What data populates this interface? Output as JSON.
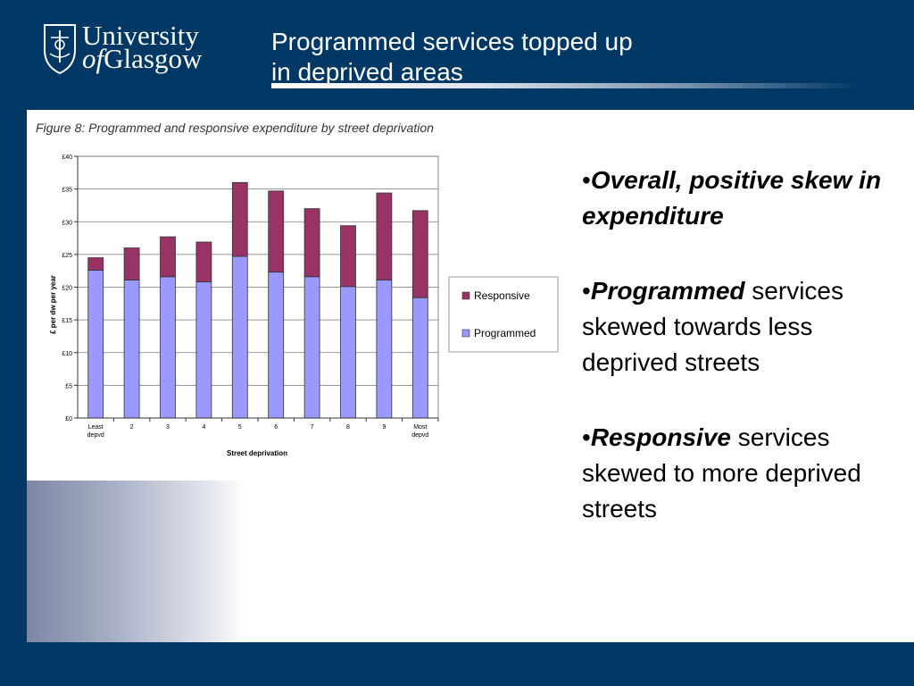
{
  "slide": {
    "title_line1": "Programmed services topped up",
    "title_line2": "in deprived areas"
  },
  "logo": {
    "line1": "University",
    "line2_of": "of",
    "line2_rest": "Glasgow"
  },
  "bullets": [
    {
      "bold_italic": "Overall, positive skew in expenditure",
      "rest": ""
    },
    {
      "bold_italic": "Programmed",
      "rest": " services skewed towards less deprived streets"
    },
    {
      "bold_italic": "Responsive",
      "rest": " services skewed to more deprived streets"
    }
  ],
  "colors": {
    "background": "#003865",
    "programmed": "#9999ff",
    "responsive": "#993366"
  },
  "chart_data": {
    "type": "bar",
    "stacked": true,
    "title": "Figure 8: Programmed and responsive expenditure by street deprivation",
    "xlabel": "Street deprivation",
    "ylabel": "£ per dw per year",
    "ylim": [
      0,
      40
    ],
    "yticks": [
      "£0",
      "£5",
      "£10",
      "£15",
      "£20",
      "£25",
      "£30",
      "£35",
      "£40"
    ],
    "categories": [
      "Least depvd",
      "2",
      "3",
      "4",
      "5",
      "6",
      "7",
      "8",
      "9",
      "Most depvd"
    ],
    "series": [
      {
        "name": "Programmed",
        "values": [
          22.6,
          21.1,
          21.6,
          20.8,
          24.7,
          22.3,
          21.6,
          20.1,
          21.1,
          18.4
        ]
      },
      {
        "name": "Responsive",
        "values": [
          1.9,
          4.9,
          6.1,
          6.1,
          11.3,
          12.4,
          10.4,
          9.3,
          13.3,
          13.3
        ]
      }
    ],
    "legend": {
      "placement": "right",
      "entries": [
        "Responsive",
        "Programmed"
      ]
    },
    "grid": true
  }
}
